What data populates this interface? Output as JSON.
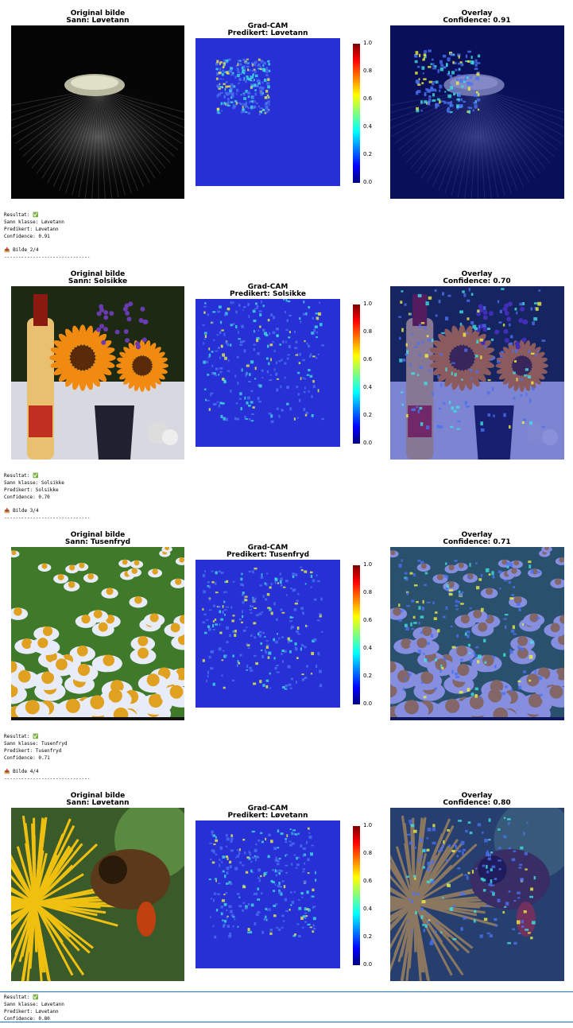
{
  "rows": [
    {
      "original_title": "Original bilde",
      "true_label": "Sann: Løvetann",
      "gradcam_title": "Grad-CAM",
      "predicted_label": "Predikert: Løvetann",
      "overlay_title": "Overlay",
      "confidence_label": "Confidence: 0.91",
      "output": [
        "Resultat: ✅",
        "Sann klasse: Løvetann",
        "Predikert: Løvetann",
        "Confidence: 0.91"
      ],
      "next": "📤 Bilde 2/4",
      "separator": "------------------------------"
    },
    {
      "original_title": "Original bilde",
      "true_label": "Sann: Solsikke",
      "gradcam_title": "Grad-CAM",
      "predicted_label": "Predikert: Solsikke",
      "overlay_title": "Overlay",
      "confidence_label": "Confidence: 0.70",
      "output": [
        "Resultat: ✅",
        "Sann klasse: Solsikke",
        "Predikert: Solsikke",
        "Confidence: 0.70"
      ],
      "next": "📤 Bilde 3/4",
      "separator": "------------------------------"
    },
    {
      "original_title": "Original bilde",
      "true_label": "Sann: Tusenfryd",
      "gradcam_title": "Grad-CAM",
      "predicted_label": "Predikert: Tusenfryd",
      "overlay_title": "Overlay",
      "confidence_label": "Confidence: 0.71",
      "output": [
        "Resultat: ✅",
        "Sann klasse: Tusenfryd",
        "Predikert: Tusenfryd",
        "Confidence: 0.71"
      ],
      "next": "📤 Bilde 4/4",
      "separator": "------------------------------"
    },
    {
      "original_title": "Original bilde",
      "true_label": "Sann: Løvetann",
      "gradcam_title": "Grad-CAM",
      "predicted_label": "Predikert: Løvetann",
      "overlay_title": "Overlay",
      "confidence_label": "Confidence: 0.80",
      "output": [
        "Resultat: ✅",
        "Sann klasse: Løvetann",
        "Predikert: Løvetann",
        "Confidence: 0.80"
      ]
    }
  ],
  "colorbar_ticks": [
    "0.0",
    "0.2",
    "0.4",
    "0.6",
    "0.8",
    "1.0"
  ]
}
